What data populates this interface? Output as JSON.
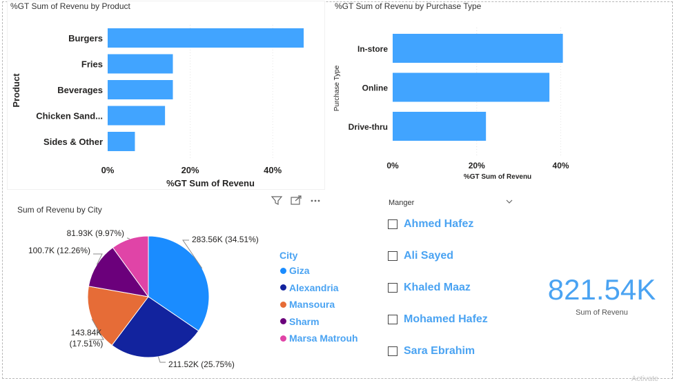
{
  "product_chart": {
    "title": "%GT Sum of Revenu by Product",
    "ylabel": "Product",
    "xlabel": "%GT Sum of Revenu",
    "chart_data": {
      "type": "bar",
      "orientation": "horizontal",
      "title": "%GT Sum of Revenu by Product",
      "xlabel": "%GT Sum of Revenu",
      "ylabel": "Product",
      "categories": [
        "Burgers",
        "Fries",
        "Beverages",
        "Chicken Sand...",
        "Sides & Other"
      ],
      "values": [
        47.5,
        15.8,
        15.8,
        13.9,
        6.6
      ],
      "xlim": [
        0,
        50
      ],
      "xticks": [
        "0%",
        "20%",
        "40%"
      ],
      "xtick_values": [
        0,
        20,
        40
      ],
      "bar_color": "#41a4ff",
      "grid": true
    }
  },
  "purchase_chart": {
    "title": "%GT Sum of Revenu by Purchase Type",
    "ylabel": "Purchase Type",
    "xlabel": "%GT Sum of Revenu",
    "chart_data": {
      "type": "bar",
      "orientation": "horizontal",
      "title": "%GT Sum of Revenu by Purchase Type",
      "xlabel": "%GT Sum of Revenu",
      "ylabel": "Purchase Type",
      "categories": [
        "In-store",
        "Online",
        "Drive-thru"
      ],
      "values": [
        40.5,
        37.3,
        22.2
      ],
      "xlim": [
        0,
        45
      ],
      "xticks": [
        "0%",
        "20%",
        "40%"
      ],
      "xtick_values": [
        0,
        20,
        40
      ],
      "bar_color": "#41a4ff",
      "grid": true
    }
  },
  "city_chart": {
    "title": "Sum of Revenu by City",
    "legend_title": "City",
    "chart_data": {
      "type": "pie",
      "title": "Sum of Revenu by City",
      "categories": [
        "Giza",
        "Alexandria",
        "Mansoura",
        "Sharm",
        "Marsa Matrouh"
      ],
      "values": [
        283.56,
        211.52,
        143.84,
        100.7,
        81.93
      ],
      "units": "K",
      "data_labels": [
        "283.56K (34.51%)",
        "211.52K (25.75%)",
        "143.84K (17.51%)",
        "100.7K (12.26%)",
        "81.93K (9.97%)"
      ],
      "colors": [
        "#1a8cff",
        "#12239e",
        "#e66c37",
        "#6b007b",
        "#e044a7"
      ],
      "legend_position": "right"
    }
  },
  "slicer": {
    "title": "Manger",
    "items": [
      "Ahmed Hafez",
      "Ali Sayed",
      "Khaled Maaz",
      "Mohamed Hafez",
      "Sara Ebrahim"
    ]
  },
  "kpi": {
    "value": "821.54K",
    "label": "Sum of Revenu"
  },
  "header_icons": [
    "filter-icon",
    "focus-mode-icon",
    "more-options-icon"
  ],
  "watermark": "Activate"
}
